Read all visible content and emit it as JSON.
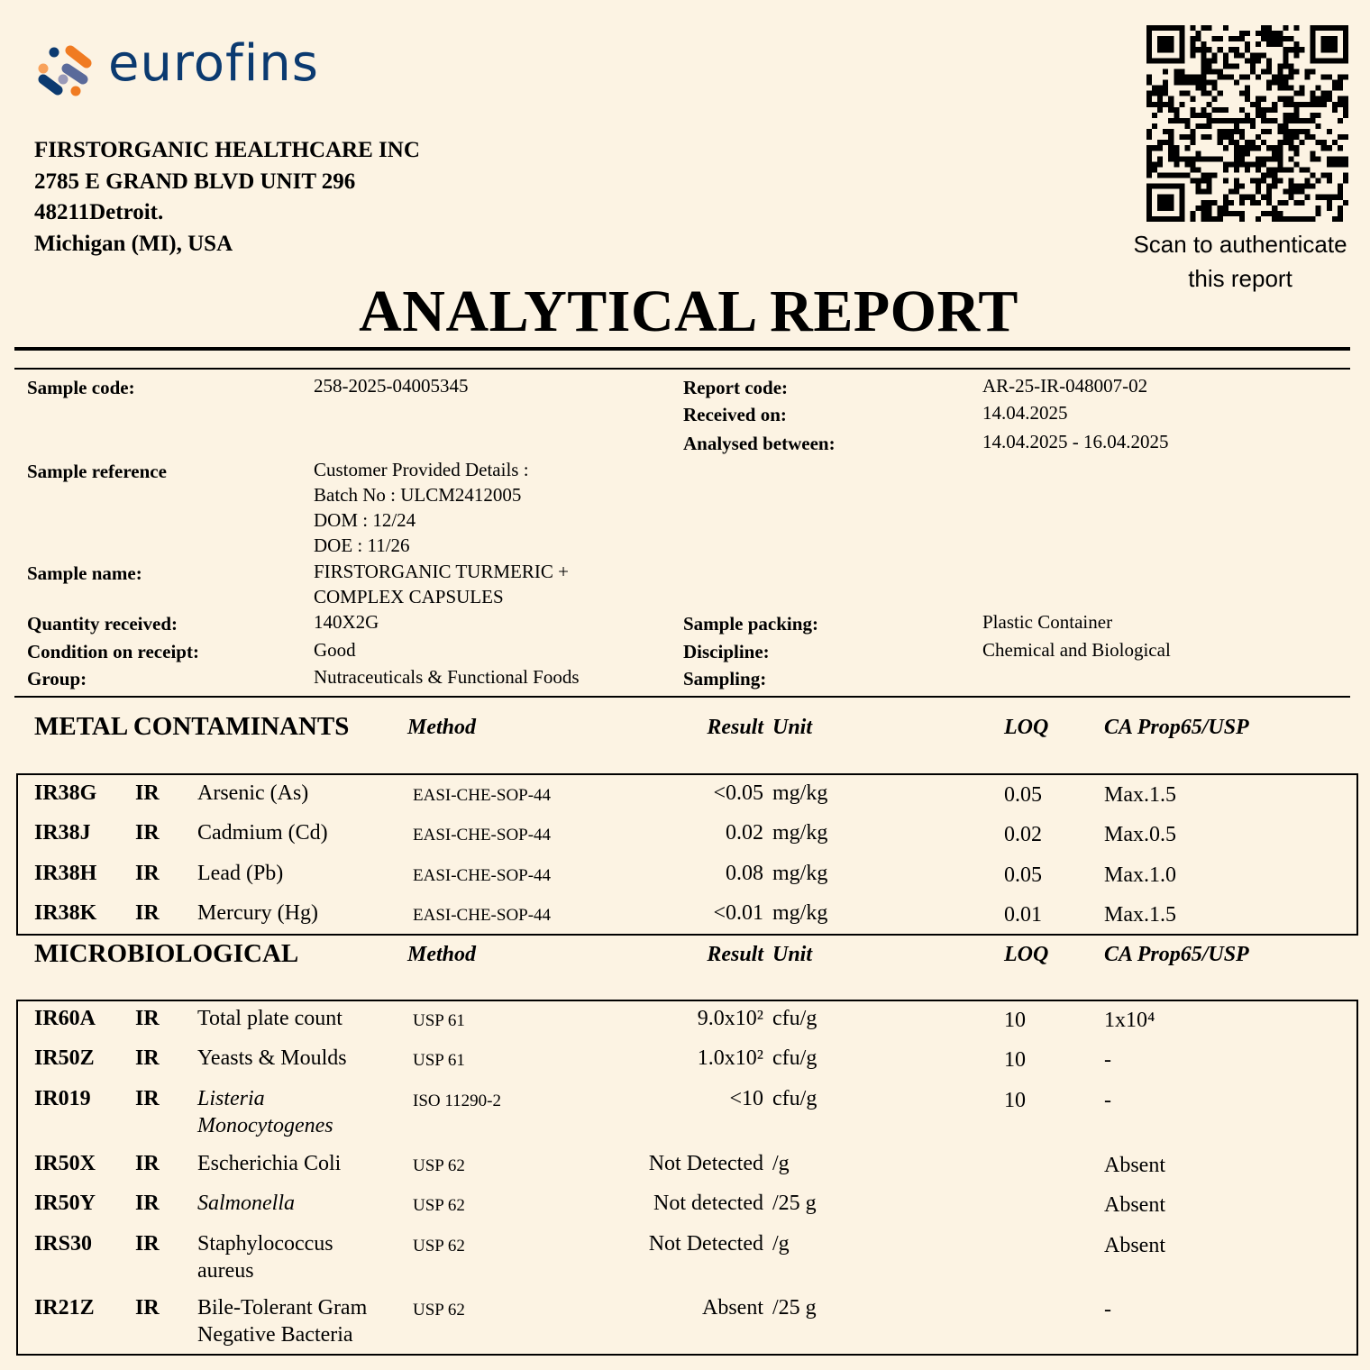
{
  "brand": {
    "name": "eurofins",
    "colors": {
      "navy": "#0b3a70",
      "orange": "#f07b22",
      "light_orange": "#f8a15a",
      "gray_blue": "#5a6a9a",
      "light_gray": "#9a9ab8"
    }
  },
  "customer": {
    "line1": "FIRSTORGANIC HEALTHCARE INC",
    "line2": "2785 E GRAND BLVD UNIT 296",
    "line3": "48211Detroit.",
    "line4": "Michigan (MI), USA"
  },
  "qr": {
    "caption_line1": "Scan to authenticate",
    "caption_line2": "this report"
  },
  "title": "ANALYTICAL REPORT",
  "info": {
    "sample_code_label": "Sample code:",
    "sample_code": "258-2025-04005345",
    "report_code_label": "Report code:",
    "report_code": "AR-25-IR-048007-02",
    "received_label": "Received on:",
    "received": "14.04.2025",
    "analysed_label": "Analysed between:",
    "analysed": "14.04.2025 - 16.04.2025",
    "sample_ref_label": "Sample reference",
    "sample_ref": [
      "Customer Provided Details :",
      "Batch No : ULCM2412005",
      "DOM : 12/24",
      "DOE : 11/26"
    ],
    "sample_name_label": "Sample name:",
    "sample_name": [
      "FIRSTORGANIC TURMERIC +",
      "COMPLEX CAPSULES"
    ],
    "quantity_label": "Quantity received:",
    "quantity": "140X2G",
    "packing_label": "Sample packing:",
    "packing": "Plastic Container",
    "condition_label": "Condition on receipt:",
    "condition": "Good",
    "discipline_label": "Discipline:",
    "discipline": "Chemical and Biological",
    "group_label": "Group:",
    "group": "Nutraceuticals & Functional Foods",
    "sampling_label": "Sampling:"
  },
  "headers": {
    "method": "Method",
    "result": "Result",
    "unit": "Unit",
    "loq": "LOQ",
    "limit": "CA Prop65/USP"
  },
  "sections": [
    {
      "title": "METAL CONTAMINANTS",
      "rows": [
        {
          "code": "IR38G",
          "lab": "IR",
          "name": [
            "Arsenic (As)"
          ],
          "italic": false,
          "method": "EASI-CHE-SOP-44",
          "result": "<0.05",
          "unit": "mg/kg",
          "loq": "0.05",
          "limit": "Max.1.5"
        },
        {
          "code": "IR38J",
          "lab": "IR",
          "name": [
            "Cadmium (Cd)"
          ],
          "italic": false,
          "method": "EASI-CHE-SOP-44",
          "result": "0.02",
          "unit": "mg/kg",
          "loq": "0.02",
          "limit": "Max.0.5"
        },
        {
          "code": "IR38H",
          "lab": "IR",
          "name": [
            "Lead (Pb)"
          ],
          "italic": false,
          "method": "EASI-CHE-SOP-44",
          "result": "0.08",
          "unit": "mg/kg",
          "loq": "0.05",
          "limit": "Max.1.0"
        },
        {
          "code": "IR38K",
          "lab": "IR",
          "name": [
            "Mercury (Hg)"
          ],
          "italic": false,
          "method": "EASI-CHE-SOP-44",
          "result": "<0.01",
          "unit": "mg/kg",
          "loq": "0.01",
          "limit": "Max.1.5"
        }
      ]
    },
    {
      "title": "MICROBIOLOGICAL",
      "rows": [
        {
          "code": "IR60A",
          "lab": "IR",
          "name": [
            "Total plate count"
          ],
          "italic": false,
          "method": "USP 61",
          "result": "9.0x10²",
          "unit": "cfu/g",
          "loq": "10",
          "limit": "1x10⁴"
        },
        {
          "code": "IR50Z",
          "lab": "IR",
          "name": [
            "Yeasts & Moulds"
          ],
          "italic": false,
          "method": "USP 61",
          "result": "1.0x10²",
          "unit": "cfu/g",
          "loq": "10",
          "limit": "-"
        },
        {
          "code": "IR019",
          "lab": "IR",
          "name": [
            "Listeria",
            "Monocytogenes"
          ],
          "italic": true,
          "method": "ISO 11290-2",
          "result": "<10",
          "unit": "cfu/g",
          "loq": "10",
          "limit": "-"
        },
        {
          "code": "IR50X",
          "lab": "IR",
          "name": [
            "Escherichia Coli"
          ],
          "italic": false,
          "method": "USP 62",
          "result": "Not Detected",
          "unit": "/g",
          "loq": "",
          "limit": "Absent"
        },
        {
          "code": "IR50Y",
          "lab": "IR",
          "name": [
            "Salmonella"
          ],
          "italic": true,
          "method": "USP 62",
          "result": "Not detected",
          "unit": "/25 g",
          "loq": "",
          "limit": "Absent"
        },
        {
          "code": "IRS30",
          "lab": "IR",
          "name": [
            "Staphylococcus",
            "aureus"
          ],
          "italic": false,
          "method": "USP 62",
          "result": "Not Detected",
          "unit": "/g",
          "loq": "",
          "limit": "Absent"
        },
        {
          "code": "IR21Z",
          "lab": "IR",
          "name": [
            "Bile-Tolerant Gram",
            "Negative Bacteria"
          ],
          "italic": false,
          "method": "USP 62",
          "result": "Absent",
          "unit": "/25 g",
          "loq": "",
          "limit": "-"
        }
      ]
    }
  ]
}
